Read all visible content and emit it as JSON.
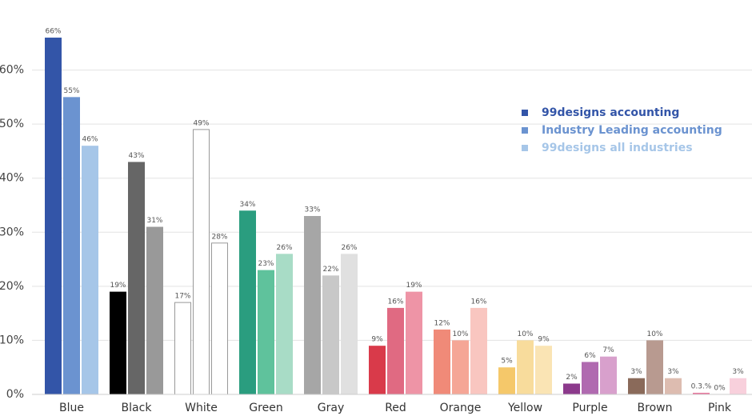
{
  "chart_data": {
    "type": "bar",
    "categories": [
      "Blue",
      "Black",
      "White",
      "Green",
      "Gray",
      "Red",
      "Orange",
      "Yellow",
      "Purple",
      "Brown",
      "Pink"
    ],
    "series": [
      {
        "name": "99designs accounting",
        "color": "#3355a8",
        "colors": [
          "#3355a8",
          "#000000",
          "#ffffff",
          "#2a9d7f",
          "#a6a6a6",
          "#d93a4a",
          "#f08a78",
          "#f5c86a",
          "#8c3a8c",
          "#8a6a5a",
          "#e87aa0"
        ],
        "values": [
          66,
          19,
          17,
          34,
          33,
          9,
          12,
          5,
          2,
          3,
          0.3
        ],
        "value_labels": [
          "66%",
          "19%",
          "17%",
          "34%",
          "33%",
          "9%",
          "12%",
          "5%",
          "2%",
          "3%",
          "0.3.%"
        ]
      },
      {
        "name": "Industry Leading accounting",
        "color": "#6b93d0",
        "colors": [
          "#6b93d0",
          "#666666",
          "#ffffff",
          "#5fc29c",
          "#c8c8c8",
          "#e06a82",
          "#f5a696",
          "#f8dc9c",
          "#b06ab0",
          "#b89a90",
          "#f0a8c4"
        ],
        "values": [
          55,
          43,
          49,
          23,
          22,
          16,
          10,
          10,
          6,
          10,
          0
        ],
        "value_labels": [
          "55%",
          "43%",
          "49%",
          "23%",
          "22%",
          "16%",
          "10%",
          "10%",
          "6%",
          "10%",
          "0%"
        ]
      },
      {
        "name": "99designs all industries",
        "color": "#a6c6e8",
        "colors": [
          "#a6c6e8",
          "#999999",
          "#ffffff",
          "#a8dcc6",
          "#e0e0e0",
          "#ee94a6",
          "#f9c6c0",
          "#fae4b4",
          "#d8a0cc",
          "#ddbcb0",
          "#f8d0dc"
        ],
        "values": [
          46,
          31,
          28,
          26,
          26,
          19,
          16,
          9,
          7,
          3,
          3
        ],
        "value_labels": [
          "46%",
          "31%",
          "28%",
          "26%",
          "26%",
          "19%",
          "16%",
          "9%",
          "7%",
          "3%",
          "3%"
        ]
      }
    ],
    "ylim": [
      0,
      70
    ],
    "yticks": [
      {
        "value": 0,
        "label": "0%"
      },
      {
        "value": 10,
        "label": "10%"
      },
      {
        "value": 20,
        "label": "20%"
      },
      {
        "value": 30,
        "label": "30%"
      },
      {
        "value": 40,
        "label": "40%"
      },
      {
        "value": 50,
        "label": "50%"
      },
      {
        "value": 60,
        "label": "60%"
      }
    ],
    "grid": true,
    "legend": "upper right"
  }
}
